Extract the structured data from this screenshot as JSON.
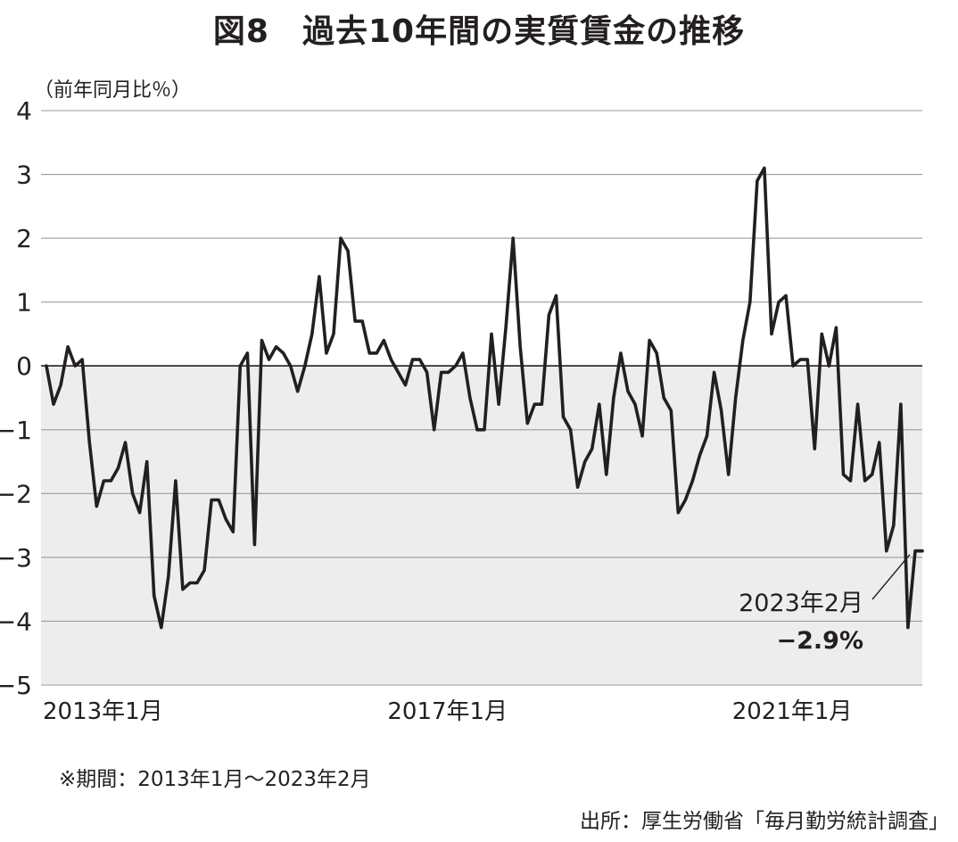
{
  "title": "図8　過去10年間の実質賃金の推移",
  "unit_label": "（前年同月比％）",
  "note": "※期間：2013年1月〜2023年2月",
  "source": "出所：厚生労働省「毎月勤労統計調査」",
  "annotation": {
    "label": "2023年2月",
    "value": "−2.9%",
    "index": 121
  },
  "colors": {
    "line": "#231f20",
    "negative_fill": "#ededed",
    "grid": "#9b9b9b"
  },
  "chart_data": {
    "type": "line",
    "title": "図8　過去10年間の実質賃金の推移",
    "ylabel": "（前年同月比％）",
    "xlabel": "",
    "ylim": [
      -5,
      4
    ],
    "yticks": [
      4,
      3,
      2,
      1,
      0,
      -1,
      -2,
      -3,
      -4,
      -5
    ],
    "ytick_labels": [
      "4",
      "3",
      "2",
      "1",
      "0",
      "−1",
      "−2",
      "−3",
      "−4",
      "−5"
    ],
    "xtick_labels": [
      {
        "label": "2013年1月",
        "index": 0
      },
      {
        "label": "2017年1月",
        "index": 48
      },
      {
        "label": "2021年1月",
        "index": 96
      }
    ],
    "grid": true,
    "negative_region_shaded": true,
    "period": "2013年1月〜2023年2月",
    "series": [
      {
        "values": [
          0.0,
          -0.6,
          -0.3,
          0.3,
          0.0,
          0.1,
          -1.2,
          -2.2,
          -1.8,
          -1.8,
          -1.6,
          -1.2,
          -2.0,
          -2.3,
          -1.5,
          -3.6,
          -4.1,
          -3.3,
          -1.8,
          -3.5,
          -3.4,
          -3.4,
          -3.2,
          -2.1,
          -2.1,
          -2.4,
          -2.6,
          0.0,
          0.2,
          -2.8,
          0.4,
          0.1,
          0.3,
          0.2,
          0.0,
          -0.4,
          0.0,
          0.5,
          1.4,
          0.2,
          0.5,
          2.0,
          1.8,
          0.7,
          0.7,
          0.2,
          0.2,
          0.4,
          0.1,
          -0.1,
          -0.3,
          0.1,
          0.1,
          -0.1,
          -1.0,
          -0.1,
          -0.1,
          0.0,
          0.2,
          -0.5,
          -1.0,
          -1.0,
          0.5,
          -0.6,
          0.6,
          2.0,
          0.3,
          -0.9,
          -0.6,
          -0.6,
          0.8,
          1.1,
          -0.8,
          -1.0,
          -1.9,
          -1.5,
          -1.3,
          -0.6,
          -1.7,
          -0.5,
          0.2,
          -0.4,
          -0.6,
          -1.1,
          0.4,
          0.2,
          -0.5,
          -0.7,
          -2.3,
          -2.1,
          -1.8,
          -1.4,
          -1.1,
          -0.1,
          -0.7,
          -1.7,
          -0.5,
          0.4,
          1.0,
          2.9,
          3.1,
          0.5,
          1.0,
          1.1,
          0.0,
          0.1,
          0.1,
          -1.3,
          0.5,
          0.0,
          0.6,
          -1.7,
          -1.8,
          -0.6,
          -1.8,
          -1.7,
          -1.2,
          -2.9,
          -2.5,
          -0.6,
          -4.1,
          -2.9,
          -2.9
        ]
      }
    ]
  }
}
